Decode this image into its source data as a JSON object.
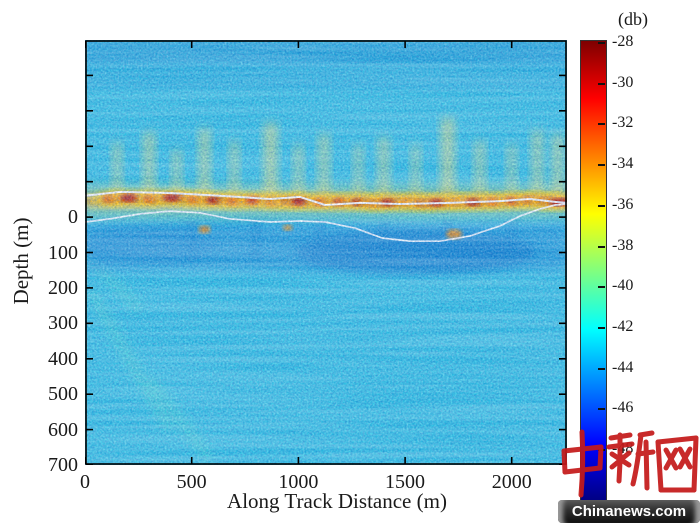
{
  "watermark": {
    "cn_text": "中新网",
    "site_text": "Chinanews.com",
    "logo_color": "#c41a1a",
    "box_bg": "#2b2b2b",
    "box_text_color": "#ffffff"
  },
  "chart_data": {
    "type": "heatmap",
    "title": "",
    "xlabel": "Along Track Distance (m)",
    "ylabel": "Depth (m)",
    "x_range": [
      0,
      2259
    ],
    "y_range": [
      -500,
      700
    ],
    "x_ticks": [
      {
        "value": 0,
        "label": "0"
      },
      {
        "value": 500,
        "label": "500"
      },
      {
        "value": 1000,
        "label": "1000"
      },
      {
        "value": 1500,
        "label": "1500"
      },
      {
        "value": 2000,
        "label": "2000"
      }
    ],
    "y_ticks": [
      {
        "value": -400,
        "label": ""
      },
      {
        "value": -300,
        "label": ""
      },
      {
        "value": -200,
        "label": ""
      },
      {
        "value": -100,
        "label": ""
      },
      {
        "value": 0,
        "label": "0"
      },
      {
        "value": 100,
        "label": "100"
      },
      {
        "value": 200,
        "label": "200"
      },
      {
        "value": 300,
        "label": "300"
      },
      {
        "value": 400,
        "label": "400"
      },
      {
        "value": 500,
        "label": "500"
      },
      {
        "value": 600,
        "label": "600"
      },
      {
        "value": 700,
        "label": "700"
      }
    ],
    "grid": false,
    "colorbar": {
      "title": "(db)",
      "colormap": "jet",
      "tick_values": [
        -28,
        -30,
        -32,
        -34,
        -36,
        -38,
        -40,
        -42,
        -44,
        -46,
        -48
      ],
      "tick_labels": [
        "-28",
        "-30",
        "-32",
        "-34",
        "-36",
        "-38",
        "-40",
        "-42",
        "-44",
        "-46",
        "-48"
      ],
      "value_top": -28,
      "value_bottom": -50.7
    },
    "background_db": -41.5,
    "features": {
      "base_color": "#2cc2e4",
      "line_color": "#ffffff",
      "surface_bands": [
        {
          "from": -500,
          "to": -430,
          "color": "#1ba6db",
          "opacity": 0.9
        },
        {
          "from": -430,
          "to": -360,
          "color": "#27b4e0",
          "opacity": 0.7
        }
      ],
      "scattering_layer": {
        "band_from": -110,
        "band_to": 20,
        "band_color": "#ffe14e",
        "core_from": -75,
        "core_to": -18,
        "core_color": "#ff9e00"
      },
      "hotspots": [
        [
          120,
          -52,
          0.85,
          7
        ],
        [
          210,
          -54,
          1,
          10
        ],
        [
          310,
          -52,
          0.8,
          7
        ],
        [
          420,
          -55,
          1,
          12
        ],
        [
          520,
          -50,
          0.7,
          8
        ],
        [
          610,
          -48,
          0.9,
          9
        ],
        [
          700,
          -46,
          0.6,
          8
        ],
        [
          790,
          -47,
          0.75,
          8
        ],
        [
          880,
          -44,
          0.65,
          7
        ],
        [
          960,
          -45,
          0.9,
          9
        ],
        [
          1010,
          -44,
          1,
          9
        ],
        [
          1110,
          -42,
          0.7,
          8
        ],
        [
          1200,
          -43,
          0.8,
          8
        ],
        [
          1290,
          -42,
          0.9,
          9
        ],
        [
          1360,
          -40,
          0.75,
          8
        ],
        [
          1430,
          -41,
          0.95,
          10
        ],
        [
          1520,
          -42,
          0.7,
          8
        ],
        [
          1590,
          -40,
          0.9,
          9
        ],
        [
          1660,
          -41,
          1,
          10
        ],
        [
          1750,
          -42,
          0.7,
          8
        ],
        [
          1830,
          -42,
          0.95,
          10
        ],
        [
          1920,
          -44,
          0.7,
          8
        ],
        [
          2010,
          -46,
          0.8,
          8
        ],
        [
          2090,
          -48,
          0.75,
          8
        ],
        [
          2160,
          -46,
          0.9,
          9
        ],
        [
          2225,
          -42,
          1,
          11
        ]
      ],
      "plumes": [
        [
          150,
          -210,
          9,
          0.5
        ],
        [
          300,
          -240,
          11,
          0.55
        ],
        [
          430,
          -190,
          9,
          0.5
        ],
        [
          560,
          -250,
          11,
          0.55
        ],
        [
          700,
          -215,
          9,
          0.5
        ],
        [
          870,
          -265,
          13,
          0.6
        ],
        [
          1000,
          -205,
          9,
          0.5
        ],
        [
          1120,
          -235,
          11,
          0.5
        ],
        [
          1280,
          -205,
          9,
          0.45
        ],
        [
          1400,
          -225,
          11,
          0.5
        ],
        [
          1550,
          -205,
          9,
          0.45
        ],
        [
          1700,
          -280,
          13,
          0.6
        ],
        [
          1850,
          -215,
          10,
          0.5
        ],
        [
          2000,
          -205,
          9,
          0.45
        ],
        [
          2120,
          -245,
          11,
          0.5
        ],
        [
          2215,
          -235,
          11,
          0.55
        ]
      ],
      "deep_band": {
        "rect_from": 20,
        "rect_to": 150,
        "color": "#1593d8",
        "opacity": 0.7,
        "pockets": [
          [
            1550,
            99,
            120,
            22,
            "#0e81cf",
            0.75
          ],
          [
            300,
            79,
            70,
            16,
            "#1390d6",
            0.6
          ]
        ]
      },
      "under_stripes": [
        500,
        800,
        1100,
        1400,
        1700,
        2000
      ],
      "orange_spots": [
        [
          1730,
          48,
          8,
          5
        ],
        [
          560,
          35,
          6,
          4
        ],
        [
          950,
          30,
          5,
          3
        ]
      ],
      "streaks": [
        [
          23,
          206,
          398,
          601
        ],
        [
          0,
          105,
          258,
          262
        ],
        [
          305,
          460,
          586,
          686
        ]
      ],
      "upper_line": [
        [
          0,
          -60
        ],
        [
          164,
          -71
        ],
        [
          398,
          -68
        ],
        [
          633,
          -60
        ],
        [
          867,
          -51
        ],
        [
          1008,
          -57
        ],
        [
          1125,
          -34
        ],
        [
          1289,
          -40
        ],
        [
          1476,
          -37
        ],
        [
          1711,
          -40
        ],
        [
          1945,
          -45
        ],
        [
          2086,
          -51
        ],
        [
          2203,
          -43
        ],
        [
          2259,
          -40
        ]
      ],
      "lower_line": [
        [
          0,
          14
        ],
        [
          117,
          5
        ],
        [
          258,
          -9
        ],
        [
          398,
          -17
        ],
        [
          539,
          -12
        ],
        [
          680,
          5
        ],
        [
          867,
          14
        ],
        [
          1008,
          11
        ],
        [
          1125,
          14
        ],
        [
          1266,
          31
        ],
        [
          1392,
          59
        ],
        [
          1523,
          68
        ],
        [
          1664,
          68
        ],
        [
          1805,
          53
        ],
        [
          1945,
          25
        ],
        [
          2039,
          -3
        ],
        [
          2133,
          -23
        ],
        [
          2203,
          -34
        ],
        [
          2259,
          -37
        ]
      ]
    }
  }
}
